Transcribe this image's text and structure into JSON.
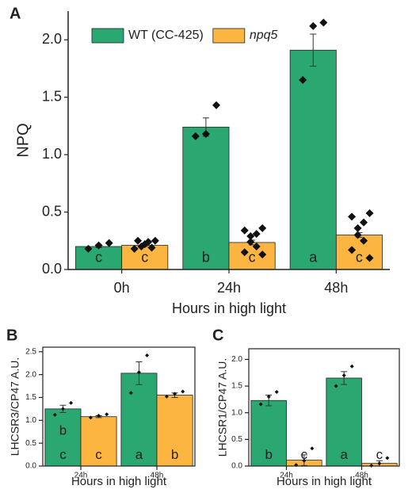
{
  "chart_data": [
    {
      "type": "bar",
      "panel_label": "A",
      "ylabel": "NPQ",
      "xlabel": "Hours in high light",
      "categories": [
        "0h",
        "24h",
        "48h"
      ],
      "ylim": [
        0,
        2.25
      ],
      "yticks": [
        {
          "value": 0,
          "label": "0.0"
        },
        0.5,
        {
          "value": 1,
          "label": "1.0"
        },
        1.5,
        {
          "value": 2,
          "label": "2.0"
        }
      ],
      "legend": "top-left",
      "series": [
        {
          "name": "WT (CC-425)",
          "color": "#2ba872",
          "values": [
            0.2,
            1.24,
            1.91
          ],
          "errors": [
            0.01,
            0.08,
            0.14
          ],
          "points": [
            [
              0.23,
              0.21,
              0.18
            ],
            [
              1.43,
              1.18,
              1.16
            ],
            [
              2.15,
              2.12,
              1.65
            ]
          ],
          "letters": [
            [
              "c"
            ],
            [
              "b"
            ],
            [
              "a"
            ]
          ]
        },
        {
          "name": "npq5",
          "color": "#fbb540",
          "values": [
            0.21,
            0.235,
            0.3
          ],
          "errors": [
            0.01,
            0.02,
            0.02
          ],
          "points": [
            [
              0.25,
              0.25,
              0.24,
              0.22,
              0.2,
              0.19,
              0.18
            ],
            [
              0.36,
              0.34,
              0.31,
              0.29,
              0.24,
              0.2,
              0.15,
              0.13
            ],
            [
              0.49,
              0.46,
              0.41,
              0.36,
              0.3,
              0.25,
              0.17,
              0.1
            ]
          ],
          "letters": [
            [
              "c"
            ],
            [
              "c"
            ],
            [
              "c"
            ]
          ]
        }
      ]
    },
    {
      "type": "bar",
      "panel_label": "B",
      "ylabel": "LHCSR3/CP47 A.U.",
      "xlabel": "Hours in high light",
      "categories": [
        "24h",
        "48h"
      ],
      "ylim": [
        0,
        2.6
      ],
      "yticks": [
        {
          "value": 0,
          "label": "0.0"
        },
        0.5,
        {
          "value": 1,
          "label": "1.0"
        },
        1.5,
        {
          "value": 2,
          "label": "2.0"
        },
        2.5
      ],
      "series": [
        {
          "color": "#2ba872",
          "values": [
            1.25,
            2.03
          ],
          "errors": [
            0.08,
            0.25
          ],
          "points": [
            [
              1.38,
              1.25,
              1.12
            ],
            [
              2.42,
              2.05,
              1.6
            ]
          ],
          "letters": [
            [
              "b",
              "c"
            ],
            [
              "a"
            ]
          ]
        },
        {
          "color": "#fbb540",
          "values": [
            1.08,
            1.55
          ],
          "errors": [
            0.02,
            0.05
          ],
          "points": [
            [
              1.13,
              1.1,
              1.06
            ],
            [
              1.63,
              1.58,
              1.52
            ]
          ],
          "letters": [
            [
              "c"
            ],
            [
              "b"
            ]
          ]
        }
      ]
    },
    {
      "type": "bar",
      "panel_label": "C",
      "ylabel": "LHCSR1/CP47 A.U.",
      "xlabel": "Hours in high light",
      "categories": [
        "24h",
        "48h"
      ],
      "ylim": [
        0,
        2.2
      ],
      "yticks": [
        {
          "value": 0,
          "label": "0.0"
        },
        0.5,
        {
          "value": 1,
          "label": "1.0"
        },
        1.5,
        {
          "value": 2,
          "label": "2.0"
        }
      ],
      "series": [
        {
          "color": "#2ba872",
          "values": [
            1.23,
            1.65
          ],
          "errors": [
            0.1,
            0.12
          ],
          "points": [
            [
              1.39,
              1.3,
              1.16
            ],
            [
              1.87,
              1.7,
              1.5
            ]
          ],
          "letters": [
            [
              "b"
            ],
            [
              "a"
            ]
          ]
        },
        {
          "color": "#fbb540",
          "values": [
            0.11,
            0.05
          ],
          "errors": [
            0.1,
            0.05
          ],
          "points": [
            [
              0.33,
              0.1,
              0.02
            ],
            [
              0.15,
              0.05,
              0.01
            ]
          ],
          "letters": [
            [
              "c"
            ],
            [
              "c"
            ]
          ]
        }
      ]
    }
  ]
}
